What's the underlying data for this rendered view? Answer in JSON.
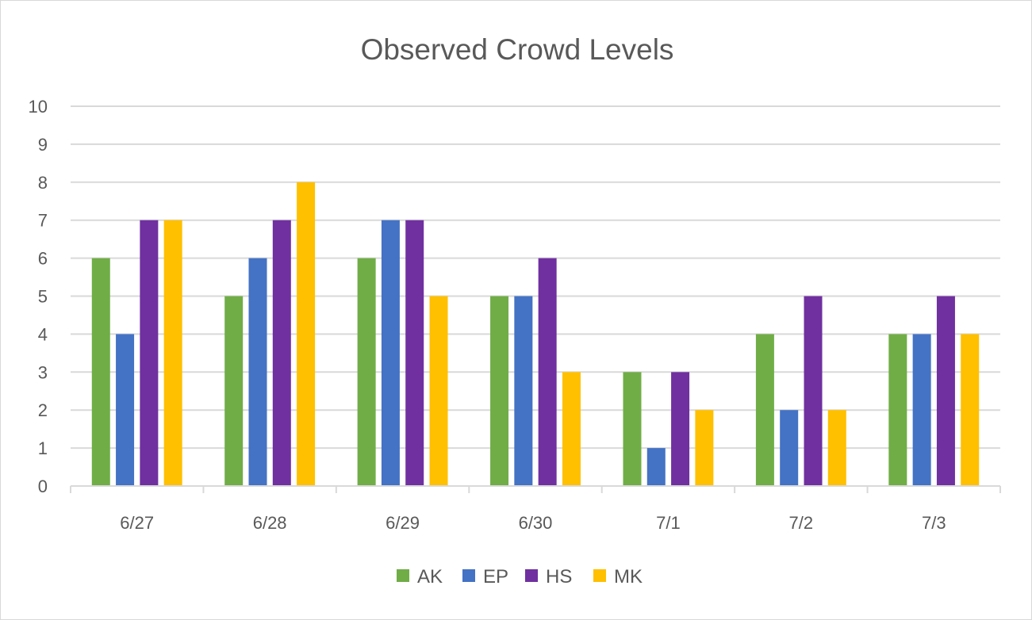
{
  "chart_data": {
    "type": "bar",
    "title": "Observed Crowd Levels",
    "xlabel": "",
    "ylabel": "",
    "categories": [
      "6/27",
      "6/28",
      "6/29",
      "6/30",
      "7/1",
      "7/2",
      "7/3"
    ],
    "ylim": [
      0,
      10
    ],
    "yticks": [
      "0",
      "1",
      "2",
      "3",
      "4",
      "5",
      "6",
      "7",
      "8",
      "9",
      "10"
    ],
    "grid": true,
    "legend": "bottom",
    "series": [
      {
        "name": "AK",
        "color": "#70ad47",
        "values": [
          6,
          5,
          6,
          5,
          3,
          4,
          4
        ]
      },
      {
        "name": "EP",
        "color": "#4472c4",
        "values": [
          4,
          6,
          7,
          5,
          1,
          2,
          4
        ]
      },
      {
        "name": "HS",
        "color": "#7030a0",
        "values": [
          7,
          7,
          7,
          6,
          3,
          5,
          5
        ]
      },
      {
        "name": "MK",
        "color": "#ffc000",
        "values": [
          7,
          8,
          5,
          3,
          2,
          2,
          4
        ]
      }
    ]
  }
}
